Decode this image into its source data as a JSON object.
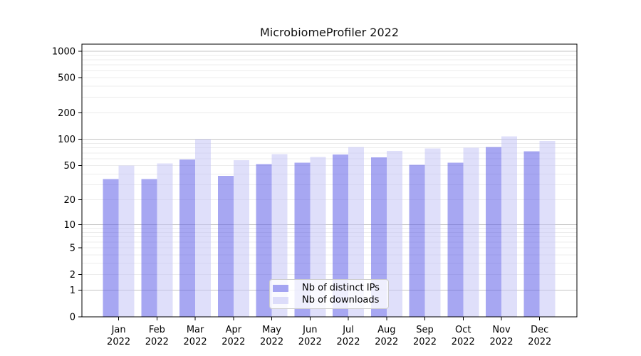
{
  "figure": {
    "title": "MicrobiomeProfiler 2022"
  },
  "chart_data": {
    "type": "bar",
    "title": "MicrobiomeProfiler 2022",
    "categories": [
      "Jan 2022",
      "Feb 2022",
      "Mar 2022",
      "Apr 2022",
      "May 2022",
      "Jun 2022",
      "Jul 2022",
      "Aug 2022",
      "Sep 2022",
      "Oct 2022",
      "Nov 2022",
      "Dec 2022"
    ],
    "series": [
      {
        "name": "Nb of distinct IPs",
        "color": "#a3a3f1",
        "fill": "rgba(94,94,232,0.55)",
        "values": [
          35,
          35,
          59,
          38,
          52,
          54,
          67,
          62,
          51,
          54,
          82,
          73
        ]
      },
      {
        "name": "Nb of downloads",
        "color": "#dcdcf9",
        "fill": "rgba(196,196,246,0.55)",
        "values": [
          50,
          53,
          100,
          58,
          68,
          63,
          82,
          74,
          79,
          80,
          108,
          96
        ]
      }
    ],
    "xlabel": "",
    "ylabel": "",
    "yscale": "log1p",
    "yticks": [
      0,
      1,
      2,
      5,
      10,
      20,
      50,
      100,
      200,
      500,
      1000
    ],
    "ylim": [
      0,
      1200
    ],
    "grid": true,
    "legend_position": "lower center",
    "colors": {
      "grid_major": "#c4c4c4",
      "grid_minor": "#ececec",
      "axis": "#000000",
      "tick": "#000000",
      "legend_border": "#cccccc"
    }
  }
}
